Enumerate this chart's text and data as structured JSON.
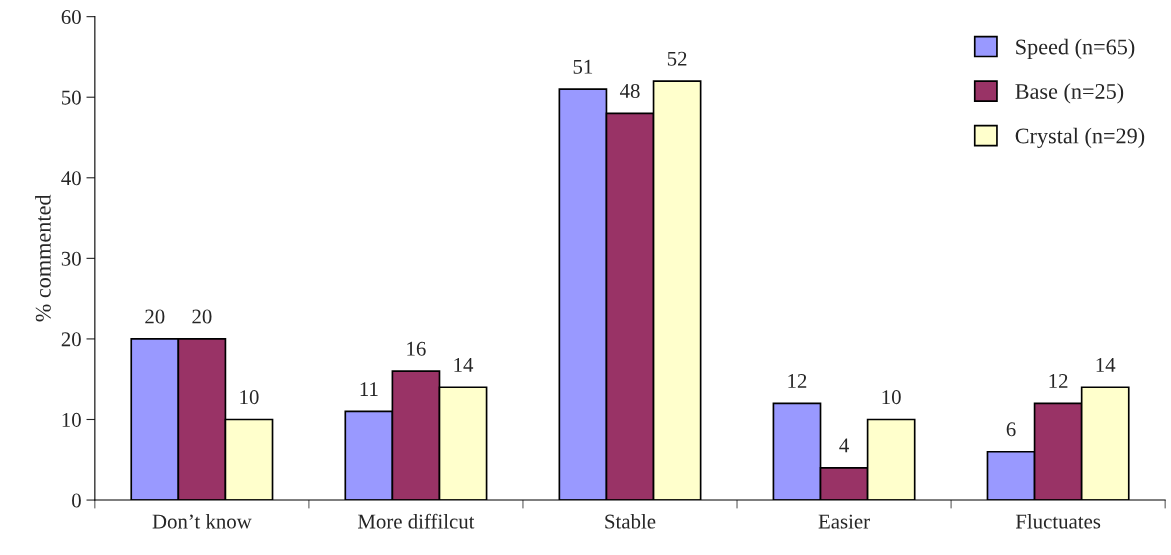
{
  "chart_data": {
    "type": "bar",
    "ylabel": "% commented",
    "categories": [
      "Don’t know",
      "More diffilcut",
      "Stable",
      "Easier",
      "Fluctuates"
    ],
    "series": [
      {
        "name": "Speed (n=65)",
        "color": "#9999ff",
        "values": [
          20,
          11,
          51,
          12,
          6
        ]
      },
      {
        "name": "Base (n=25)",
        "color": "#993366",
        "values": [
          20,
          16,
          48,
          4,
          12
        ]
      },
      {
        "name": "Crystal (n=29)",
        "color": "#ffffcc",
        "values": [
          10,
          14,
          52,
          10,
          14
        ]
      }
    ],
    "ylim": [
      0,
      60
    ],
    "yticks": [
      0,
      10,
      20,
      30,
      40,
      50,
      60
    ],
    "data_labels": true,
    "grid": false,
    "legend": "top right"
  }
}
